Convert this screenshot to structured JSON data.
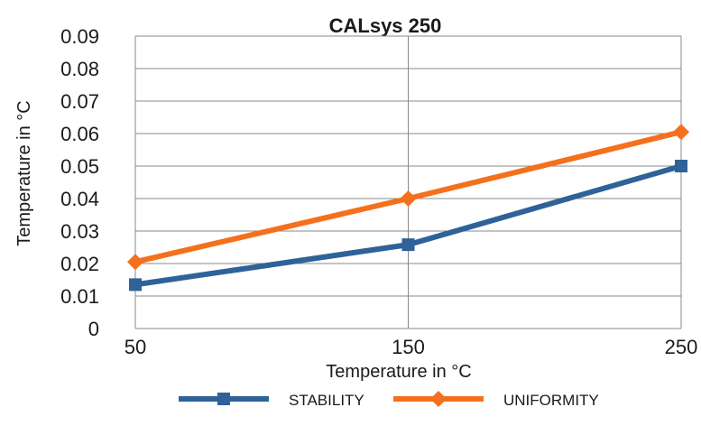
{
  "chart_data": {
    "type": "line",
    "title": "CALsys 250",
    "xlabel": "Temperature in °C",
    "ylabel": "Temperature in °C",
    "x": [
      50,
      150,
      250
    ],
    "x_tick_labels": [
      "50",
      "150",
      "250"
    ],
    "ylim": [
      0,
      0.09
    ],
    "y_ticks": [
      0,
      0.01,
      0.02,
      0.03,
      0.04,
      0.05,
      0.06,
      0.07,
      0.08,
      0.09
    ],
    "y_tick_labels": [
      "0",
      "0.01",
      "0.02",
      "0.03",
      "0.04",
      "0.05",
      "0.06",
      "0.07",
      "0.08",
      "0.09"
    ],
    "grid": true,
    "legend_position": "bottom",
    "series": [
      {
        "name": "STABILITY",
        "values": [
          0.0135,
          0.0258,
          0.05
        ],
        "color": "#2e6299",
        "marker": "square"
      },
      {
        "name": "UNIFORMITY",
        "values": [
          0.0205,
          0.04,
          0.0605
        ],
        "color": "#f4701d",
        "marker": "diamond"
      }
    ],
    "gridline_color": "#888888"
  }
}
